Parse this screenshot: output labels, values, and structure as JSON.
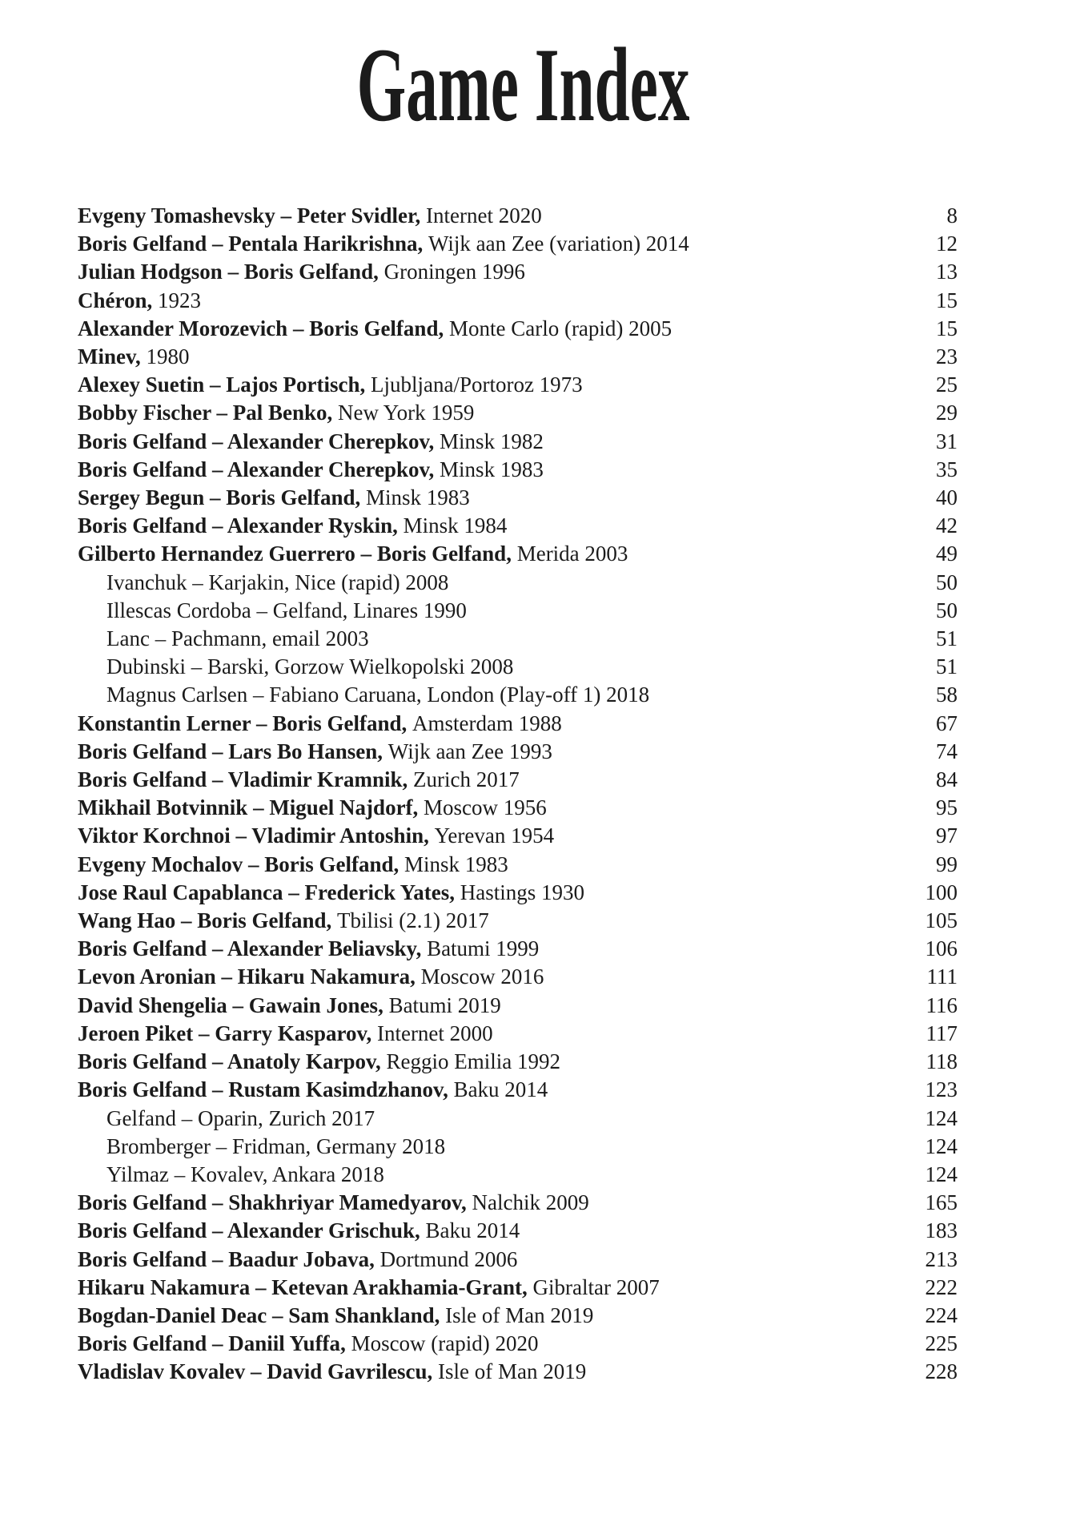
{
  "title": "Game Index",
  "colors": {
    "text": "#1b1b1b",
    "background": "#ffffff"
  },
  "entries": [
    {
      "players": "Evgeny Tomashevsky – Peter Svidler",
      "details": "Internet 2020",
      "page": "8",
      "bold": true,
      "indent": false
    },
    {
      "players": "Boris Gelfand – Pentala Harikrishna",
      "details": "Wijk aan Zee (variation) 2014",
      "page": "12",
      "bold": true,
      "indent": false
    },
    {
      "players": "Julian Hodgson – Boris Gelfand",
      "details": "Groningen 1996",
      "page": "13",
      "bold": true,
      "indent": false
    },
    {
      "players": "Chéron",
      "details": "1923",
      "page": "15",
      "bold": true,
      "indent": false
    },
    {
      "players": "Alexander Morozevich – Boris Gelfand",
      "details": "Monte Carlo (rapid) 2005",
      "page": "15",
      "bold": true,
      "indent": false
    },
    {
      "players": "Minev",
      "details": "1980",
      "page": "23",
      "bold": true,
      "indent": false
    },
    {
      "players": "Alexey Suetin – Lajos Portisch",
      "details": "Ljubljana/Portoroz 1973",
      "page": "25",
      "bold": true,
      "indent": false
    },
    {
      "players": "Bobby Fischer – Pal Benko",
      "details": "New York 1959",
      "page": "29",
      "bold": true,
      "indent": false
    },
    {
      "players": "Boris Gelfand – Alexander Cherepkov",
      "details": "Minsk 1982",
      "page": "31",
      "bold": true,
      "indent": false
    },
    {
      "players": "Boris Gelfand – Alexander Cherepkov",
      "details": "Minsk 1983",
      "page": "35",
      "bold": true,
      "indent": false
    },
    {
      "players": "Sergey Begun – Boris Gelfand",
      "details": "Minsk 1983",
      "page": "40",
      "bold": true,
      "indent": false
    },
    {
      "players": "Boris Gelfand – Alexander Ryskin",
      "details": "Minsk 1984",
      "page": "42",
      "bold": true,
      "indent": false
    },
    {
      "players": "Gilberto Hernandez Guerrero – Boris Gelfand",
      "details": "Merida 2003",
      "page": "49",
      "bold": true,
      "indent": false
    },
    {
      "players": "Ivanchuk – Karjakin",
      "details": "Nice (rapid) 2008",
      "page": "50",
      "bold": false,
      "indent": true
    },
    {
      "players": "Illescas Cordoba – Gelfand",
      "details": "Linares 1990",
      "page": "50",
      "bold": false,
      "indent": true
    },
    {
      "players": "Lanc – Pachmann",
      "details": "email 2003",
      "page": "51",
      "bold": false,
      "indent": true
    },
    {
      "players": "Dubinski – Barski",
      "details": "Gorzow Wielkopolski 2008",
      "page": "51",
      "bold": false,
      "indent": true
    },
    {
      "players": "Magnus Carlsen – Fabiano Caruana",
      "details": "London (Play-off 1) 2018",
      "page": "58",
      "bold": false,
      "indent": true
    },
    {
      "players": "Konstantin Lerner – Boris Gelfand",
      "details": "Amsterdam 1988",
      "page": "67",
      "bold": true,
      "indent": false
    },
    {
      "players": "Boris Gelfand – Lars Bo Hansen",
      "details": "Wijk aan Zee 1993",
      "page": "74",
      "bold": true,
      "indent": false
    },
    {
      "players": "Boris Gelfand – Vladimir Kramnik",
      "details": "Zurich 2017",
      "page": "84",
      "bold": true,
      "indent": false
    },
    {
      "players": "Mikhail Botvinnik – Miguel Najdorf",
      "details": "Moscow 1956",
      "page": "95",
      "bold": true,
      "indent": false
    },
    {
      "players": "Viktor Korchnoi – Vladimir Antoshin",
      "details": "Yerevan 1954",
      "page": "97",
      "bold": true,
      "indent": false
    },
    {
      "players": "Evgeny Mochalov – Boris Gelfand",
      "details": "Minsk 1983",
      "page": "99",
      "bold": true,
      "indent": false
    },
    {
      "players": "Jose Raul Capablanca – Frederick Yates",
      "details": "Hastings 1930",
      "page": "100",
      "bold": true,
      "indent": false
    },
    {
      "players": "Wang Hao – Boris Gelfand",
      "details": "Tbilisi (2.1) 2017",
      "page": "105",
      "bold": true,
      "indent": false
    },
    {
      "players": "Boris Gelfand – Alexander Beliavsky",
      "details": "Batumi 1999",
      "page": "106",
      "bold": true,
      "indent": false
    },
    {
      "players": "Levon Aronian – Hikaru Nakamura",
      "details": "Moscow 2016",
      "page": "111",
      "bold": true,
      "indent": false
    },
    {
      "players": "David Shengelia – Gawain Jones",
      "details": "Batumi 2019",
      "page": "116",
      "bold": true,
      "indent": false
    },
    {
      "players": "Jeroen Piket – Garry Kasparov",
      "details": "Internet 2000",
      "page": "117",
      "bold": true,
      "indent": false
    },
    {
      "players": "Boris Gelfand – Anatoly Karpov",
      "details": "Reggio Emilia 1992",
      "page": "118",
      "bold": true,
      "indent": false
    },
    {
      "players": "Boris Gelfand – Rustam Kasimdzhanov",
      "details": "Baku 2014",
      "page": "123",
      "bold": true,
      "indent": false
    },
    {
      "players": "Gelfand – Oparin",
      "details": "Zurich 2017",
      "page": "124",
      "bold": false,
      "indent": true
    },
    {
      "players": "Bromberger – Fridman",
      "details": "Germany 2018",
      "page": "124",
      "bold": false,
      "indent": true
    },
    {
      "players": "Yilmaz – Kovalev",
      "details": "Ankara 2018",
      "page": "124",
      "bold": false,
      "indent": true
    },
    {
      "players": "Boris Gelfand – Shakhriyar Mamedyarov",
      "details": "Nalchik 2009",
      "page": "165",
      "bold": true,
      "indent": false
    },
    {
      "players": "Boris Gelfand – Alexander Grischuk",
      "details": "Baku 2014",
      "page": "183",
      "bold": true,
      "indent": false
    },
    {
      "players": "Boris Gelfand – Baadur Jobava",
      "details": "Dortmund 2006",
      "page": "213",
      "bold": true,
      "indent": false
    },
    {
      "players": "Hikaru Nakamura – Ketevan Arakhamia-Grant",
      "details": "Gibraltar 2007",
      "page": "222",
      "bold": true,
      "indent": false
    },
    {
      "players": "Bogdan-Daniel Deac – Sam Shankland",
      "details": "Isle of Man 2019",
      "page": "224",
      "bold": true,
      "indent": false
    },
    {
      "players": "Boris Gelfand – Daniil Yuffa",
      "details": "Moscow (rapid) 2020",
      "page": "225",
      "bold": true,
      "indent": false
    },
    {
      "players": "Vladislav Kovalev – David Gavrilescu",
      "details": "Isle of Man 2019",
      "page": "228",
      "bold": true,
      "indent": false
    }
  ]
}
